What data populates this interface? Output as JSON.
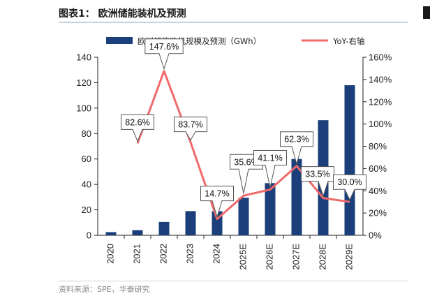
{
  "header": {
    "title": "图表1：  欧洲储能装机及预测"
  },
  "footer": {
    "source": "资料来源：SPE，华泰研究"
  },
  "chart_data": {
    "type": "bar",
    "categories": [
      "2020",
      "2021",
      "2022",
      "2023",
      "2024",
      "2025E",
      "2026E",
      "2027E",
      "2028E",
      "2029E"
    ],
    "series": [
      {
        "name": "欧洲储能装机规模及预测（GWh）",
        "type": "bar",
        "axis": "left",
        "color": "#1b3f7a",
        "values": [
          2.5,
          4,
          10.5,
          19,
          19,
          29.5,
          41,
          60,
          90.5,
          118
        ]
      },
      {
        "name": "YoY-右轴",
        "type": "line",
        "axis": "right",
        "color": "#f06a6a",
        "values": [
          null,
          82.6,
          147.6,
          83.7,
          14.7,
          35.6,
          41.1,
          62.3,
          33.5,
          30.0
        ],
        "labels": [
          "",
          "82.6%",
          "147.6%",
          "83.7%",
          "14.7%",
          "35.6%",
          "41.1%",
          "62.3%",
          "33.5%",
          "30.0%"
        ]
      }
    ],
    "yleft": {
      "min": 0,
      "max": 140,
      "ticks": [
        "0",
        "20",
        "40",
        "60",
        "80",
        "100",
        "120",
        "140"
      ]
    },
    "yright": {
      "min": 0,
      "max": 160,
      "ticks": [
        "0%",
        "20%",
        "40%",
        "60%",
        "80%",
        "100%",
        "120%",
        "140%",
        "160%"
      ]
    },
    "grid": false,
    "legend_position": "top"
  }
}
